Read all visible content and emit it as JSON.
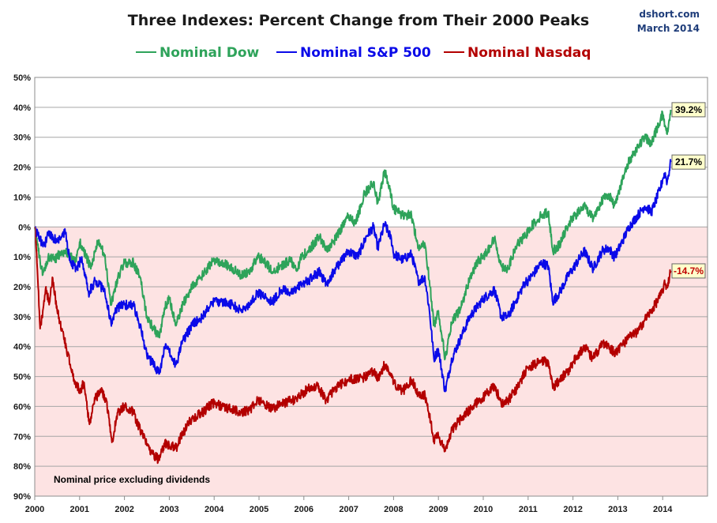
{
  "chart_data": {
    "type": "line",
    "title": "Three Indexes: Percent Change from Their 2000 Peaks",
    "source": "dshort.com",
    "date_label": "March 2014",
    "note": "Nominal price excluding dividends",
    "xlim": [
      2000,
      2015
    ],
    "ylim": [
      -90,
      50
    ],
    "x_ticks": [
      "2000",
      "2001",
      "2002",
      "2003",
      "2004",
      "2005",
      "2006",
      "2007",
      "2008",
      "2009",
      "2010",
      "2011",
      "2012",
      "2013",
      "2014"
    ],
    "y_ticks": [
      {
        "value": 50,
        "label": "50%"
      },
      {
        "value": 40,
        "label": "40%"
      },
      {
        "value": 30,
        "label": "30%"
      },
      {
        "value": 20,
        "label": "20%"
      },
      {
        "value": 10,
        "label": "10%"
      },
      {
        "value": 0,
        "label": "0%"
      },
      {
        "value": -10,
        "label": "10%"
      },
      {
        "value": -20,
        "label": "20%"
      },
      {
        "value": -30,
        "label": "30%"
      },
      {
        "value": -40,
        "label": "40%"
      },
      {
        "value": -50,
        "label": "50%"
      },
      {
        "value": -60,
        "label": "60%"
      },
      {
        "value": -70,
        "label": "70%"
      },
      {
        "value": -80,
        "label": "80%"
      },
      {
        "value": -90,
        "label": "90%"
      }
    ],
    "negative_region_color": "#fde3e3",
    "grid": true,
    "legend_position": "top",
    "series": [
      {
        "name": "Nominal Dow",
        "color": "#2ea35a",
        "end_label": "39.2%",
        "end_label_color": "#000000",
        "points": [
          [
            2000.0,
            0
          ],
          [
            2000.08,
            -8
          ],
          [
            2000.18,
            -16
          ],
          [
            2000.3,
            -10
          ],
          [
            2000.45,
            -11
          ],
          [
            2000.6,
            -8
          ],
          [
            2000.75,
            -9
          ],
          [
            2000.9,
            -12
          ],
          [
            2001.0,
            -5
          ],
          [
            2001.1,
            -8
          ],
          [
            2001.25,
            -14
          ],
          [
            2001.4,
            -5
          ],
          [
            2001.55,
            -9
          ],
          [
            2001.7,
            -26
          ],
          [
            2001.85,
            -17
          ],
          [
            2002.0,
            -12
          ],
          [
            2002.2,
            -12
          ],
          [
            2002.35,
            -17
          ],
          [
            2002.5,
            -30
          ],
          [
            2002.65,
            -34
          ],
          [
            2002.78,
            -37
          ],
          [
            2002.9,
            -27
          ],
          [
            2003.0,
            -24
          ],
          [
            2003.15,
            -33
          ],
          [
            2003.3,
            -26
          ],
          [
            2003.5,
            -20
          ],
          [
            2003.7,
            -17
          ],
          [
            2003.9,
            -13
          ],
          [
            2004.0,
            -11
          ],
          [
            2004.2,
            -12
          ],
          [
            2004.4,
            -14
          ],
          [
            2004.6,
            -16
          ],
          [
            2004.8,
            -15
          ],
          [
            2004.95,
            -10
          ],
          [
            2005.1,
            -11
          ],
          [
            2005.3,
            -15
          ],
          [
            2005.5,
            -13
          ],
          [
            2005.7,
            -11
          ],
          [
            2005.85,
            -14
          ],
          [
            2005.95,
            -10
          ],
          [
            2006.1,
            -8
          ],
          [
            2006.35,
            -3
          ],
          [
            2006.5,
            -8
          ],
          [
            2006.7,
            -4
          ],
          [
            2006.9,
            1
          ],
          [
            2007.0,
            4
          ],
          [
            2007.15,
            1
          ],
          [
            2007.35,
            11
          ],
          [
            2007.55,
            15
          ],
          [
            2007.65,
            8
          ],
          [
            2007.8,
            19
          ],
          [
            2007.92,
            12
          ],
          [
            2008.0,
            6
          ],
          [
            2008.2,
            4
          ],
          [
            2008.4,
            4
          ],
          [
            2008.55,
            -7
          ],
          [
            2008.7,
            -6
          ],
          [
            2008.8,
            -18
          ],
          [
            2008.9,
            -33
          ],
          [
            2009.0,
            -28
          ],
          [
            2009.15,
            -44
          ],
          [
            2009.3,
            -32
          ],
          [
            2009.5,
            -27
          ],
          [
            2009.7,
            -17
          ],
          [
            2009.9,
            -11
          ],
          [
            2010.0,
            -10
          ],
          [
            2010.25,
            -4
          ],
          [
            2010.4,
            -13
          ],
          [
            2010.55,
            -14
          ],
          [
            2010.75,
            -6
          ],
          [
            2010.95,
            -3
          ],
          [
            2011.0,
            -1
          ],
          [
            2011.3,
            4
          ],
          [
            2011.45,
            5
          ],
          [
            2011.55,
            -8
          ],
          [
            2011.7,
            -6
          ],
          [
            2011.9,
            1
          ],
          [
            2012.0,
            3
          ],
          [
            2012.25,
            7
          ],
          [
            2012.45,
            3
          ],
          [
            2012.65,
            9
          ],
          [
            2012.8,
            11
          ],
          [
            2012.92,
            7
          ],
          [
            2013.0,
            11
          ],
          [
            2013.25,
            22
          ],
          [
            2013.45,
            27
          ],
          [
            2013.6,
            30
          ],
          [
            2013.75,
            28
          ],
          [
            2013.95,
            36
          ],
          [
            2014.0,
            38
          ],
          [
            2014.05,
            34
          ],
          [
            2014.1,
            31
          ],
          [
            2014.18,
            39.2
          ]
        ]
      },
      {
        "name": "Nominal S&P 500",
        "color": "#0a0ae8",
        "end_label": "21.7%",
        "end_label_color": "#000000",
        "points": [
          [
            2000.0,
            0
          ],
          [
            2000.1,
            -4
          ],
          [
            2000.22,
            -6
          ],
          [
            2000.3,
            -2
          ],
          [
            2000.5,
            -5
          ],
          [
            2000.68,
            -2
          ],
          [
            2000.8,
            -12
          ],
          [
            2000.95,
            -14
          ],
          [
            2001.05,
            -10
          ],
          [
            2001.2,
            -22
          ],
          [
            2001.35,
            -18
          ],
          [
            2001.55,
            -21
          ],
          [
            2001.7,
            -32
          ],
          [
            2001.85,
            -27
          ],
          [
            2002.0,
            -26
          ],
          [
            2002.2,
            -26
          ],
          [
            2002.35,
            -33
          ],
          [
            2002.5,
            -43
          ],
          [
            2002.6,
            -45
          ],
          [
            2002.78,
            -49
          ],
          [
            2002.9,
            -40
          ],
          [
            2003.0,
            -42
          ],
          [
            2003.15,
            -46
          ],
          [
            2003.3,
            -38
          ],
          [
            2003.55,
            -32
          ],
          [
            2003.75,
            -30
          ],
          [
            2003.95,
            -25
          ],
          [
            2004.0,
            -25
          ],
          [
            2004.2,
            -25
          ],
          [
            2004.4,
            -26
          ],
          [
            2004.6,
            -28
          ],
          [
            2004.8,
            -26
          ],
          [
            2004.95,
            -22
          ],
          [
            2005.1,
            -23
          ],
          [
            2005.3,
            -25
          ],
          [
            2005.5,
            -21
          ],
          [
            2005.75,
            -22
          ],
          [
            2005.95,
            -19
          ],
          [
            2006.1,
            -18
          ],
          [
            2006.35,
            -15
          ],
          [
            2006.5,
            -19
          ],
          [
            2006.75,
            -13
          ],
          [
            2006.95,
            -9
          ],
          [
            2007.0,
            -8
          ],
          [
            2007.2,
            -10
          ],
          [
            2007.4,
            -3
          ],
          [
            2007.55,
            0
          ],
          [
            2007.65,
            -7
          ],
          [
            2007.8,
            1
          ],
          [
            2007.95,
            -4
          ],
          [
            2008.0,
            -9
          ],
          [
            2008.2,
            -11
          ],
          [
            2008.4,
            -9
          ],
          [
            2008.55,
            -18
          ],
          [
            2008.7,
            -17
          ],
          [
            2008.8,
            -28
          ],
          [
            2008.9,
            -44
          ],
          [
            2009.0,
            -41
          ],
          [
            2009.15,
            -55
          ],
          [
            2009.3,
            -44
          ],
          [
            2009.5,
            -37
          ],
          [
            2009.7,
            -30
          ],
          [
            2009.9,
            -26
          ],
          [
            2010.0,
            -24
          ],
          [
            2010.25,
            -21
          ],
          [
            2010.4,
            -30
          ],
          [
            2010.55,
            -30
          ],
          [
            2010.75,
            -24
          ],
          [
            2010.95,
            -18
          ],
          [
            2011.0,
            -18
          ],
          [
            2011.3,
            -12
          ],
          [
            2011.45,
            -13
          ],
          [
            2011.55,
            -25
          ],
          [
            2011.7,
            -22
          ],
          [
            2011.9,
            -16
          ],
          [
            2012.0,
            -14
          ],
          [
            2012.25,
            -8
          ],
          [
            2012.45,
            -14
          ],
          [
            2012.65,
            -8
          ],
          [
            2012.8,
            -7
          ],
          [
            2012.92,
            -10
          ],
          [
            2013.0,
            -8
          ],
          [
            2013.25,
            0
          ],
          [
            2013.45,
            4
          ],
          [
            2013.6,
            7
          ],
          [
            2013.75,
            5
          ],
          [
            2013.95,
            13
          ],
          [
            2014.0,
            16
          ],
          [
            2014.05,
            18
          ],
          [
            2014.1,
            15
          ],
          [
            2014.18,
            21.7
          ]
        ]
      },
      {
        "name": "Nominal Nasdaq",
        "color": "#b30000",
        "end_label": "-14.7%",
        "end_label_color": "#c00000",
        "points": [
          [
            2000.0,
            0
          ],
          [
            2000.05,
            -12
          ],
          [
            2000.12,
            -34
          ],
          [
            2000.18,
            -28
          ],
          [
            2000.25,
            -20
          ],
          [
            2000.32,
            -26
          ],
          [
            2000.4,
            -17
          ],
          [
            2000.5,
            -28
          ],
          [
            2000.7,
            -40
          ],
          [
            2000.85,
            -50
          ],
          [
            2001.0,
            -55
          ],
          [
            2001.1,
            -52
          ],
          [
            2001.22,
            -66
          ],
          [
            2001.35,
            -57
          ],
          [
            2001.5,
            -55
          ],
          [
            2001.6,
            -58
          ],
          [
            2001.72,
            -72
          ],
          [
            2001.85,
            -62
          ],
          [
            2002.0,
            -60
          ],
          [
            2002.2,
            -62
          ],
          [
            2002.35,
            -68
          ],
          [
            2002.55,
            -74
          ],
          [
            2002.65,
            -76
          ],
          [
            2002.78,
            -78
          ],
          [
            2002.9,
            -72
          ],
          [
            2003.0,
            -73
          ],
          [
            2003.15,
            -74
          ],
          [
            2003.3,
            -69
          ],
          [
            2003.5,
            -64
          ],
          [
            2003.75,
            -62
          ],
          [
            2003.95,
            -59
          ],
          [
            2004.0,
            -59
          ],
          [
            2004.2,
            -60
          ],
          [
            2004.4,
            -61
          ],
          [
            2004.6,
            -62
          ],
          [
            2004.8,
            -61
          ],
          [
            2004.95,
            -58
          ],
          [
            2005.1,
            -59
          ],
          [
            2005.3,
            -61
          ],
          [
            2005.5,
            -59
          ],
          [
            2005.75,
            -58
          ],
          [
            2005.95,
            -56
          ],
          [
            2006.1,
            -54
          ],
          [
            2006.3,
            -53
          ],
          [
            2006.5,
            -58
          ],
          [
            2006.75,
            -53
          ],
          [
            2006.95,
            -52
          ],
          [
            2007.0,
            -51
          ],
          [
            2007.2,
            -51
          ],
          [
            2007.4,
            -50
          ],
          [
            2007.55,
            -48
          ],
          [
            2007.65,
            -51
          ],
          [
            2007.8,
            -46
          ],
          [
            2007.95,
            -49
          ],
          [
            2008.0,
            -52
          ],
          [
            2008.2,
            -55
          ],
          [
            2008.4,
            -51
          ],
          [
            2008.55,
            -56
          ],
          [
            2008.7,
            -56
          ],
          [
            2008.8,
            -63
          ],
          [
            2008.9,
            -71
          ],
          [
            2009.0,
            -70
          ],
          [
            2009.15,
            -75
          ],
          [
            2009.3,
            -68
          ],
          [
            2009.5,
            -64
          ],
          [
            2009.7,
            -61
          ],
          [
            2009.9,
            -58
          ],
          [
            2010.0,
            -57
          ],
          [
            2010.25,
            -53
          ],
          [
            2010.4,
            -59
          ],
          [
            2010.55,
            -58
          ],
          [
            2010.75,
            -54
          ],
          [
            2010.95,
            -48
          ],
          [
            2011.0,
            -47
          ],
          [
            2011.3,
            -45
          ],
          [
            2011.45,
            -45
          ],
          [
            2011.55,
            -54
          ],
          [
            2011.7,
            -51
          ],
          [
            2011.9,
            -48
          ],
          [
            2012.0,
            -45
          ],
          [
            2012.25,
            -40
          ],
          [
            2012.45,
            -44
          ],
          [
            2012.65,
            -39
          ],
          [
            2012.8,
            -40
          ],
          [
            2012.92,
            -42
          ],
          [
            2013.0,
            -41
          ],
          [
            2013.25,
            -37
          ],
          [
            2013.45,
            -35
          ],
          [
            2013.6,
            -31
          ],
          [
            2013.75,
            -28
          ],
          [
            2013.95,
            -23
          ],
          [
            2014.0,
            -21
          ],
          [
            2014.05,
            -19
          ],
          [
            2014.1,
            -20
          ],
          [
            2014.18,
            -14.7
          ]
        ]
      }
    ]
  }
}
